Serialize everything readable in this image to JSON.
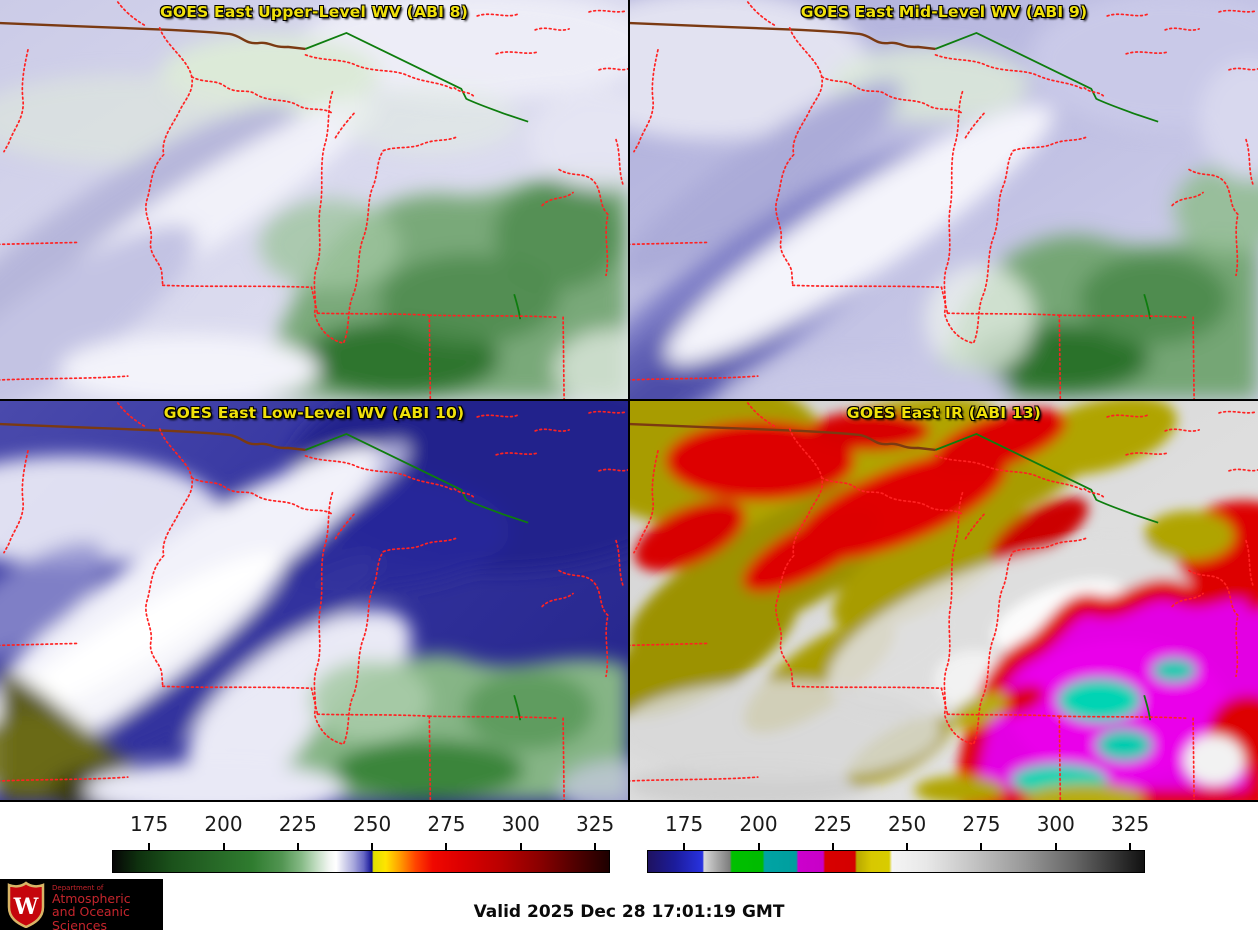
{
  "panels": [
    {
      "id": "abi8",
      "title": "GOES East Upper-Level WV (ABI 8)"
    },
    {
      "id": "abi9",
      "title": "GOES East Mid-Level WV (ABI 9)"
    },
    {
      "id": "abi10",
      "title": "GOES East Low-Level WV (ABI 10)"
    },
    {
      "id": "abi13",
      "title": "GOES East IR (ABI 13)"
    }
  ],
  "colorbar_axis": {
    "ticks": [
      175,
      200,
      225,
      250,
      275,
      300,
      325
    ],
    "range": [
      162.5,
      330
    ],
    "units": "K"
  },
  "colorbars": {
    "left": {
      "name": "water-vapor-enhancement",
      "stops": [
        [
          0,
          "#060606"
        ],
        [
          0.05,
          "#0e300e"
        ],
        [
          0.12,
          "#1b521b"
        ],
        [
          0.2,
          "#266726"
        ],
        [
          0.28,
          "#2f7c2f"
        ],
        [
          0.34,
          "#529552"
        ],
        [
          0.38,
          "#86ba86"
        ],
        [
          0.41,
          "#c2ddc2"
        ],
        [
          0.435,
          "#f0f5f0"
        ],
        [
          0.45,
          "#ffffff"
        ],
        [
          0.465,
          "#d8d8ee"
        ],
        [
          0.485,
          "#a8a8dc"
        ],
        [
          0.505,
          "#6868c4"
        ],
        [
          0.516,
          "#3030a8"
        ],
        [
          0.522,
          "#101080"
        ],
        [
          0.525,
          "#e0e000"
        ],
        [
          0.55,
          "#ffe400"
        ],
        [
          0.58,
          "#ff9900"
        ],
        [
          0.61,
          "#ff4400"
        ],
        [
          0.645,
          "#f00800"
        ],
        [
          0.7,
          "#dd0000"
        ],
        [
          0.78,
          "#bb0000"
        ],
        [
          0.86,
          "#8a0000"
        ],
        [
          0.93,
          "#520000"
        ],
        [
          1,
          "#1e0000"
        ]
      ]
    },
    "right": {
      "name": "ir-enhancement",
      "stops": [
        [
          0,
          "#1e1260"
        ],
        [
          0.055,
          "#1c1c9c"
        ],
        [
          0.11,
          "#2832e0"
        ],
        [
          0.113,
          "#d8d8d8"
        ],
        [
          0.138,
          "#aaaaaa"
        ],
        [
          0.165,
          "#7e7e7e"
        ],
        [
          0.169,
          "#00c000"
        ],
        [
          0.231,
          "#00bb00"
        ],
        [
          0.235,
          "#00a4a4"
        ],
        [
          0.299,
          "#009e9e"
        ],
        [
          0.303,
          "#cc00cc"
        ],
        [
          0.353,
          "#c800c8"
        ],
        [
          0.357,
          "#d80000"
        ],
        [
          0.417,
          "#d40000"
        ],
        [
          0.421,
          "#b8a800"
        ],
        [
          0.45,
          "#d8c800"
        ],
        [
          0.486,
          "#d8cc00"
        ],
        [
          0.492,
          "#f4f4f4"
        ],
        [
          0.56,
          "#e8e8e8"
        ],
        [
          0.66,
          "#c2c2c2"
        ],
        [
          0.76,
          "#989898"
        ],
        [
          0.86,
          "#666666"
        ],
        [
          0.94,
          "#363636"
        ],
        [
          1,
          "#111111"
        ]
      ]
    }
  },
  "footer": {
    "valid_text": "Valid 2025 Dec 28 17:01:19 GMT"
  },
  "logo": {
    "department": "Department of",
    "name_line1": "Atmospheric",
    "name_line2": "and Oceanic Sciences",
    "crest_letter": "W"
  },
  "colors": {
    "title_text": "#f0e10a",
    "state_border_dotted": "#ff2222",
    "international_border": "#0e7d0e",
    "superior_shoreline": "#7b3a12",
    "logo_red": "#c5252c"
  }
}
